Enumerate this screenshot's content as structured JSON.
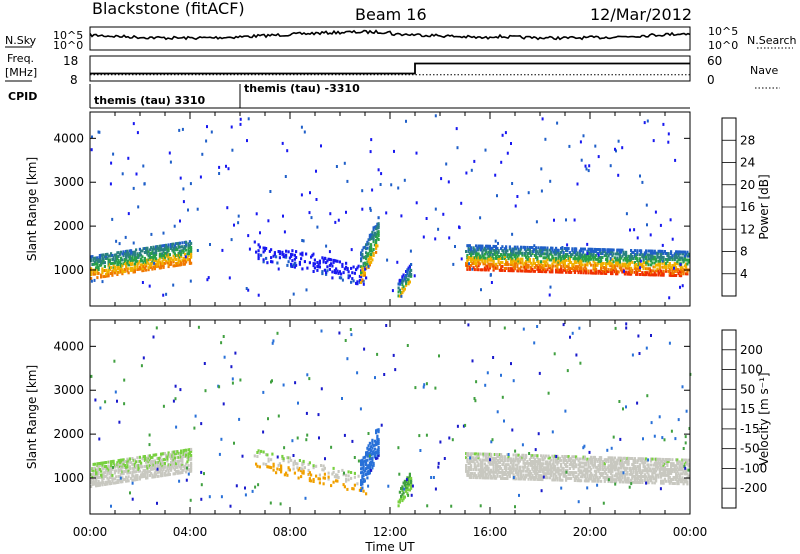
{
  "header": {
    "station": "Blackstone (fitACF)",
    "beam": "Beam 16",
    "date": "12/Mar/2012"
  },
  "noise_panel": {
    "left_label": "N.Sky",
    "left_ticks": [
      "10^5",
      "10^0"
    ],
    "right_label": "N.Search",
    "right_ticks": [
      "10^5",
      "10^0"
    ]
  },
  "freq_panel": {
    "left_label_top": "Freq.",
    "left_label_bottom": "[MHz]",
    "left_ticks": [
      "18",
      "8"
    ],
    "right_label": "Nave",
    "right_ticks": [
      "60",
      "0"
    ],
    "freq_mhz": [
      [
        0,
        10.5
      ],
      [
        24,
        10.5
      ]
    ],
    "nave": [
      [
        0,
        18
      ],
      [
        13.0,
        18
      ],
      [
        13.0,
        42
      ],
      [
        24,
        42
      ]
    ]
  },
  "cpid": {
    "label": "CPID",
    "segments": [
      {
        "text": "themis (tau) 3310",
        "start_hour": 0
      },
      {
        "text": "themis (tau) -3310",
        "start_hour": 6
      }
    ]
  },
  "chart_data": [
    {
      "type": "heatmap",
      "name": "power",
      "ylabel": "Slant Range [km]",
      "xlabel": "Time UT",
      "ylim": [
        180,
        4600
      ],
      "xlim": [
        0,
        24
      ],
      "y_ticks": [
        1000,
        2000,
        3000,
        4000
      ],
      "x_tick_labels": [
        "00:00",
        "04:00",
        "08:00",
        "12:00",
        "16:00",
        "20:00",
        "00:00"
      ],
      "colorbar": {
        "label": "Power [dB]",
        "ticks": [
          "4",
          "8",
          "12",
          "16",
          "20",
          "24",
          "28"
        ],
        "colors": [
          "#1818f0",
          "#1f5fc8",
          "#2a8080",
          "#28a048",
          "#f0b000",
          "#f07800",
          "#f03000",
          "#ee0000"
        ]
      },
      "features": [
        {
          "t0": 0.0,
          "t1": 4.0,
          "r0": 1100,
          "r1": 1450,
          "dr": 520,
          "v_low": 24,
          "v_high": 10,
          "density": 0.55
        },
        {
          "t0": 6.5,
          "t1": 11.0,
          "r0": 1500,
          "r1": 900,
          "dr": 450,
          "v_low": 6,
          "v_high": 3,
          "density": 0.18
        },
        {
          "t0": 10.8,
          "t1": 11.5,
          "r0": 1100,
          "r1": 1900,
          "dr": 700,
          "v_low": 22,
          "v_high": 8,
          "density": 0.5
        },
        {
          "t0": 12.3,
          "t1": 12.8,
          "r0": 600,
          "r1": 1000,
          "dr": 400,
          "v_low": 20,
          "v_high": 6,
          "density": 0.5
        },
        {
          "t0": 15.0,
          "t1": 23.9,
          "r0": 1350,
          "r1": 1200,
          "dr": 600,
          "v_low": 28,
          "v_high": 8,
          "density": 0.55
        }
      ]
    },
    {
      "type": "heatmap",
      "name": "velocity",
      "ylabel": "Slant Range [km]",
      "xlabel": "Time UT",
      "ylim": [
        180,
        4600
      ],
      "xlim": [
        0,
        24
      ],
      "y_ticks": [
        1000,
        2000,
        3000,
        4000
      ],
      "x_tick_labels": [
        "00:00",
        "04:00",
        "08:00",
        "12:00",
        "16:00",
        "20:00",
        "00:00"
      ],
      "colorbar": {
        "label": "Velocity [m s⁻¹]",
        "ticks": [
          "200",
          "100",
          "50",
          "15",
          "-15",
          "-50",
          "-100",
          "-200"
        ],
        "colors": [
          "#1a1acc",
          "#2870d8",
          "#40a040",
          "#78d040",
          "#c8c8c0",
          "#f0a000",
          "#f07000",
          "#f03000",
          "#e00000"
        ]
      },
      "features": [
        {
          "t0": 0.0,
          "t1": 4.0,
          "r0": 1100,
          "r1": 1450,
          "dr": 520,
          "v_low": 0,
          "v_high": 20,
          "density": 0.55
        },
        {
          "t0": 6.5,
          "t1": 11.0,
          "r0": 1500,
          "r1": 900,
          "dr": 450,
          "v_low": -40,
          "v_high": 20,
          "density": 0.18
        },
        {
          "t0": 10.8,
          "t1": 11.5,
          "r0": 1100,
          "r1": 1900,
          "dr": 700,
          "v_low": 200,
          "v_high": 120,
          "density": 0.5
        },
        {
          "t0": 12.3,
          "t1": 12.8,
          "r0": 600,
          "r1": 1000,
          "dr": 400,
          "v_low": 40,
          "v_high": 60,
          "density": 0.5
        },
        {
          "t0": 15.0,
          "t1": 23.9,
          "r0": 1350,
          "r1": 1200,
          "dr": 600,
          "v_low": -5,
          "v_high": 10,
          "density": 0.55
        }
      ]
    }
  ]
}
